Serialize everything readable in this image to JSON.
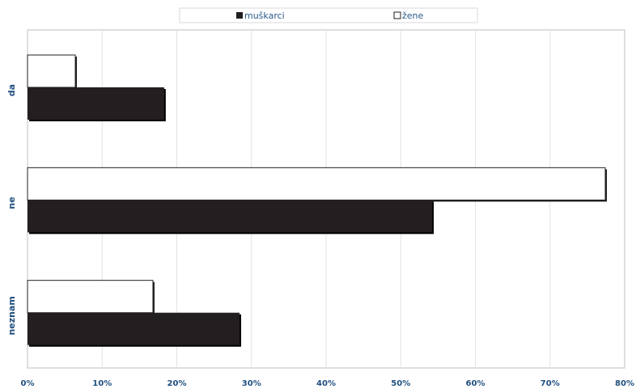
{
  "chart_data": {
    "type": "bar",
    "orientation": "horizontal",
    "categories": [
      "da",
      "ne",
      "neznam"
    ],
    "series": [
      {
        "name": "muškarci",
        "values": [
          18.3,
          54.2,
          28.4
        ],
        "color": "#231f20"
      },
      {
        "name": "žene",
        "values": [
          6.4,
          77.4,
          16.8
        ],
        "color": "#ffffff"
      }
    ],
    "xlim": [
      0,
      80
    ],
    "xticks": [
      "0%",
      "10%",
      "20%",
      "30%",
      "40%",
      "50%",
      "60%",
      "70%",
      "80%"
    ],
    "grid": true,
    "legend_position": "top"
  }
}
